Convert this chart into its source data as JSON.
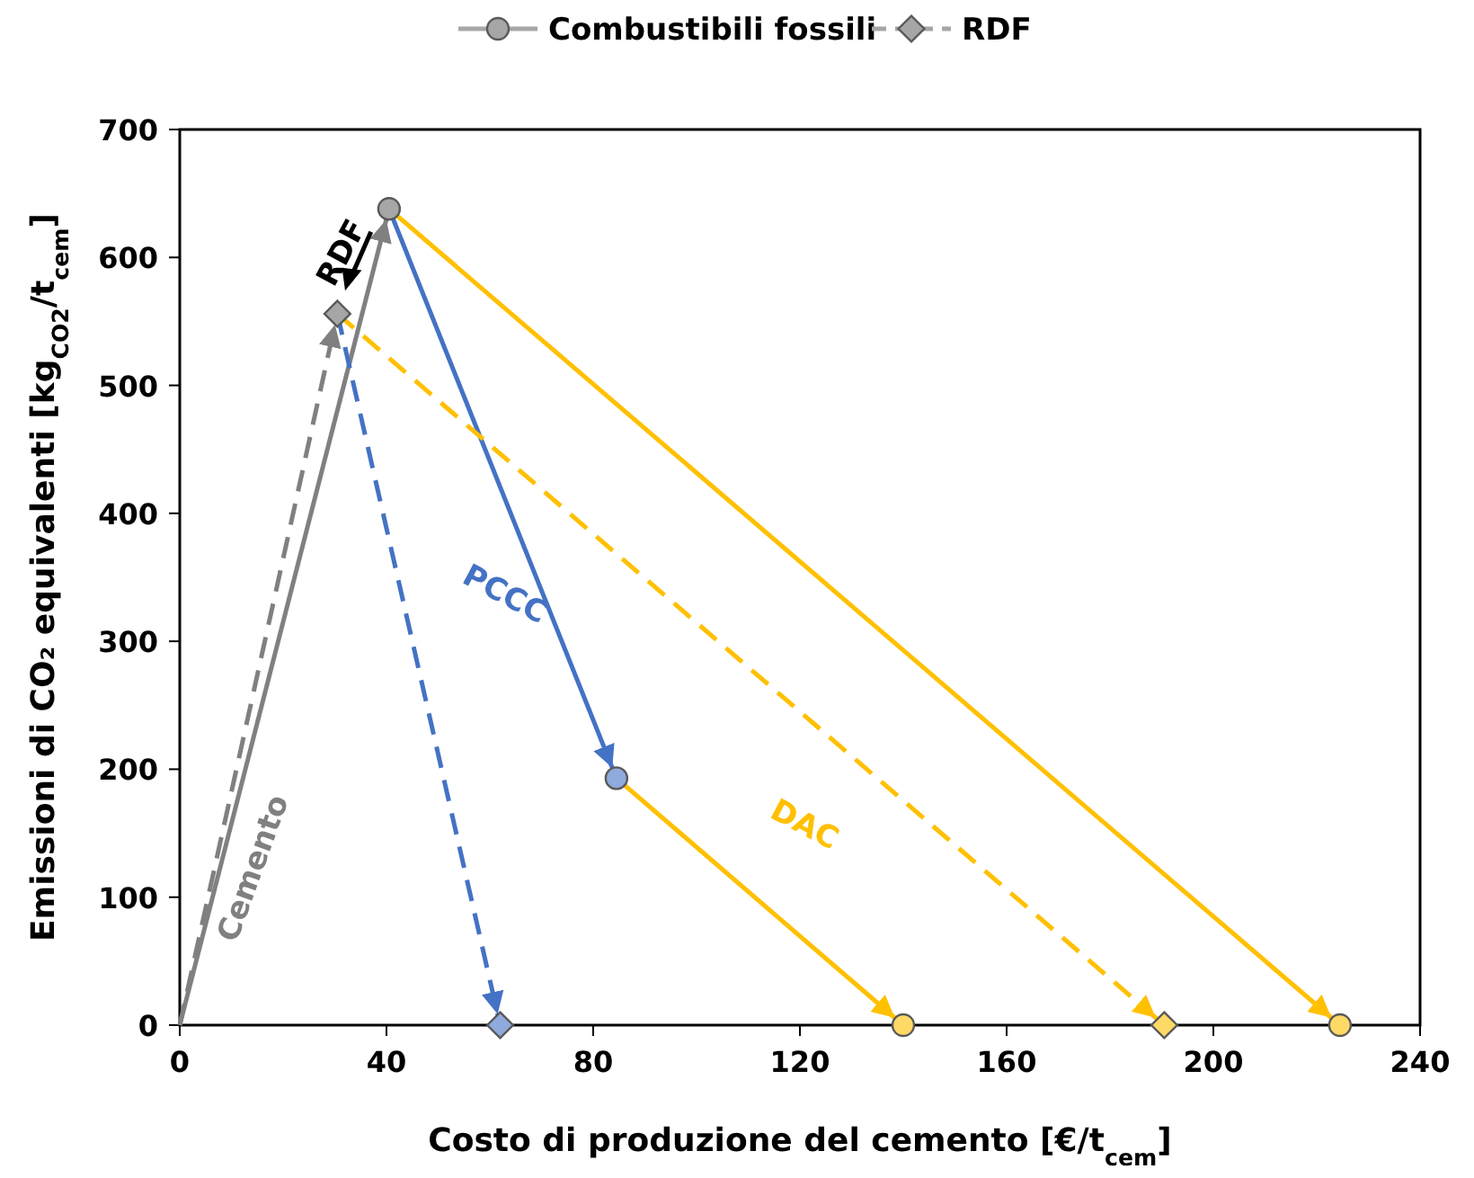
{
  "chart_data": {
    "type": "line",
    "xlabel": "Costo di produzione del cemento [€/t$_{cem}$]",
    "ylabel": "Emissioni di CO₂ equivalenti [kg$_{CO2}$/t$_{cem}$]",
    "xlim": [
      0,
      240
    ],
    "xticks": [
      0,
      40,
      80,
      120,
      160,
      200,
      240
    ],
    "ylim": [
      0,
      700
    ],
    "yticks": [
      0,
      100,
      200,
      300,
      400,
      500,
      600,
      700
    ],
    "grid": false,
    "legend": "top",
    "series": [
      {
        "color": "#808080",
        "line_style": "solid",
        "x": [
          0,
          40.5
        ],
        "values": [
          0,
          638
        ]
      },
      {
        "color": "#808080",
        "line_style": "dashed",
        "x": [
          0,
          30.5
        ],
        "values": [
          0,
          556
        ]
      },
      {
        "color": "#4472c4",
        "line_style": "solid",
        "x": [
          40.5,
          84.5
        ],
        "values": [
          638,
          193
        ]
      },
      {
        "color": "#4472c4",
        "line_style": "dashed",
        "x": [
          30.5,
          62
        ],
        "values": [
          556,
          0
        ]
      },
      {
        "color": "#ffc000",
        "line_style": "solid",
        "x": [
          84.5,
          140
        ],
        "values": [
          193,
          0
        ]
      },
      {
        "color": "#ffc000",
        "line_style": "solid",
        "x": [
          40.5,
          224.5
        ],
        "values": [
          638,
          0
        ]
      },
      {
        "color": "#ffc000",
        "line_style": "dashed",
        "x": [
          30.5,
          190.5
        ],
        "values": [
          556,
          0
        ]
      },
      {
        "type": "scatter",
        "name": "Combustibili fossili",
        "marker": "circle",
        "line_style": "solid",
        "color": "#a6a6a6",
        "colors": [
          "#a6a6a6",
          "#8faadc",
          "#ffd966",
          "#ffd966"
        ],
        "x": [
          40.5,
          84.5,
          140,
          224.5
        ],
        "values": [
          638,
          193,
          0,
          0
        ]
      },
      {
        "type": "scatter",
        "name": "RDF",
        "marker": "diamond",
        "line_style": "dashed",
        "color": "#a6a6a6",
        "colors": [
          "#a6a6a6",
          "#8faadc",
          "#ffd966"
        ],
        "x": [
          30.5,
          62,
          190.5
        ],
        "values": [
          556,
          0,
          0
        ]
      }
    ],
    "annotations": [
      "RDF",
      "PCCC",
      "DAC",
      "Cemento"
    ]
  }
}
